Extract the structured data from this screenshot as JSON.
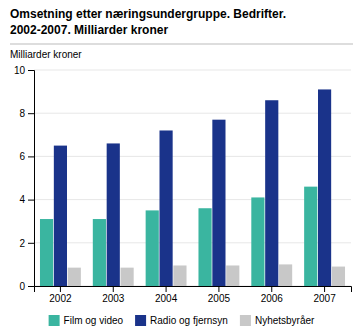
{
  "chart_data": {
    "type": "bar",
    "title": "Omsetning etter næringsundergruppe. Bedrifter.",
    "subtitle": "2002-2007. Milliarder kroner",
    "ylabel": "Milliarder kroner",
    "categories": [
      "2002",
      "2003",
      "2004",
      "2005",
      "2006",
      "2007"
    ],
    "series": [
      {
        "name": "Film og video",
        "color": "#3ab5a0",
        "values": [
          3.1,
          3.1,
          3.5,
          3.6,
          4.1,
          4.6
        ]
      },
      {
        "name": "Radio og fjernsyn",
        "color": "#1a338a",
        "values": [
          6.5,
          6.6,
          7.2,
          7.7,
          8.6,
          9.1
        ]
      },
      {
        "name": "Nyhetsbyråer",
        "color": "#c8c8c8",
        "values": [
          0.85,
          0.85,
          0.95,
          0.95,
          1.0,
          0.9
        ]
      }
    ],
    "ylim": [
      0,
      10
    ],
    "yticks": [
      0,
      2,
      4,
      6,
      8,
      10
    ],
    "grid": true,
    "legend": "bottom"
  }
}
